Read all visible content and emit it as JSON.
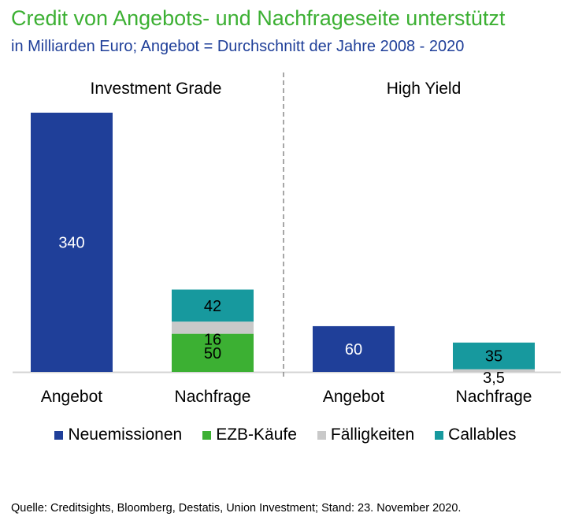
{
  "title": "Credit von Angebots- und Nachfrageseite unterstützt",
  "subtitle": "in Milliarden Euro; Angebot = Durchschnitt der Jahre 2008 - 2020",
  "source": "Quelle: Creditsights, Bloomberg, Destatis, Union Investment; Stand: 23. November 2020.",
  "chart_data": {
    "type": "bar",
    "stacked": true,
    "groups": [
      "Investment Grade",
      "High Yield"
    ],
    "categories": [
      "Angebot",
      "Nachfrage",
      "Angebot",
      "Nachfrage"
    ],
    "category_group": [
      "Investment Grade",
      "Investment Grade",
      "High Yield",
      "High Yield"
    ],
    "series": [
      {
        "name": "Neuemissionen",
        "color": "#1f3f99",
        "values": [
          340,
          0,
          60,
          0
        ],
        "labels": [
          "340",
          "",
          "60",
          ""
        ]
      },
      {
        "name": "EZB-Käufe",
        "color": "#3cb033",
        "values": [
          0,
          50,
          0,
          0
        ],
        "labels": [
          "",
          "50",
          "",
          ""
        ]
      },
      {
        "name": "Fälligkeiten",
        "color": "#c9c9c9",
        "values": [
          0,
          16,
          0,
          3.5
        ],
        "labels": [
          "",
          "16",
          "",
          "3,5"
        ]
      },
      {
        "name": "Callables",
        "color": "#17999e",
        "values": [
          0,
          42,
          0,
          35
        ],
        "labels": [
          "",
          "42",
          "",
          "35"
        ]
      }
    ],
    "ylim": [
      0,
      340
    ],
    "grid": false,
    "legend_position": "bottom"
  }
}
